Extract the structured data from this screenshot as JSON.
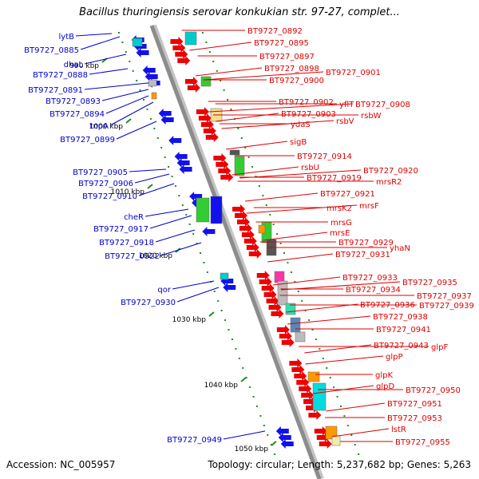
{
  "title": "Bacillus thuringiensis serovar konkukian str. 97-27, complet...",
  "footer": {
    "accession": "Accession: NC_005957",
    "stats": "Topology: circular; Length: 5,237,682 bp; Genes: 5,263"
  },
  "colors": {
    "backbone": "#8c8c8c",
    "forward_label": "#0000cc",
    "reverse_label": "#dd0000",
    "tick": "#228b22",
    "forward_feature": "#1111ee",
    "reverse_feature": "#ee0000"
  },
  "ticks": [
    "990 kbp",
    "1000 kbp",
    "1010 kbp",
    "1020 kbp",
    "1030 kbp",
    "1040 kbp",
    "1050 kbp"
  ],
  "left_labels": [
    "lytB",
    "BT9727_0885",
    "dhaL",
    "BT9727_0888",
    "BT9727_0891",
    "BT9727_0893",
    "BT9727_0894",
    "tnpA",
    "BT9727_0899",
    "BT9727_0905",
    "BT9727_0906",
    "BT9727_0910",
    "cheR",
    "BT9727_0917",
    "BT9727_0918",
    "BT9727_0922",
    "qor",
    "BT9727_0930",
    "BT9727_0949"
  ],
  "right_labels": [
    "BT9727_0892",
    "BT9727_0895",
    "BT9727_0897",
    "BT9727_0898",
    "BT9727_0900",
    "BT9727_0901",
    "BT9727_0902",
    "BT9727_0903",
    "yflT",
    "BT9727_0908",
    "ydaS",
    "rsbV",
    "rsbW",
    "sigB",
    "BT9727_0914",
    "rsbU",
    "BT9727_0919",
    "BT9727_0920",
    "mrsR2",
    "BT9727_0921",
    "mrsK2",
    "mrsF",
    "mrsG",
    "mrsE",
    "BT9727_0929",
    "BT9727_0931",
    "yhaN",
    "BT9727_0933",
    "BT9727_0934",
    "BT9727_0935",
    "BT9727_0937",
    "BT9727_0936",
    "BT9727_0939",
    "BT9727_0938",
    "BT9727_0941",
    "BT9727_0943",
    "glpF",
    "glpP",
    "glpK",
    "glpD",
    "BT9727_0950",
    "BT9727_0951",
    "BT9727_0953",
    "lstR",
    "BT9727_0955"
  ]
}
